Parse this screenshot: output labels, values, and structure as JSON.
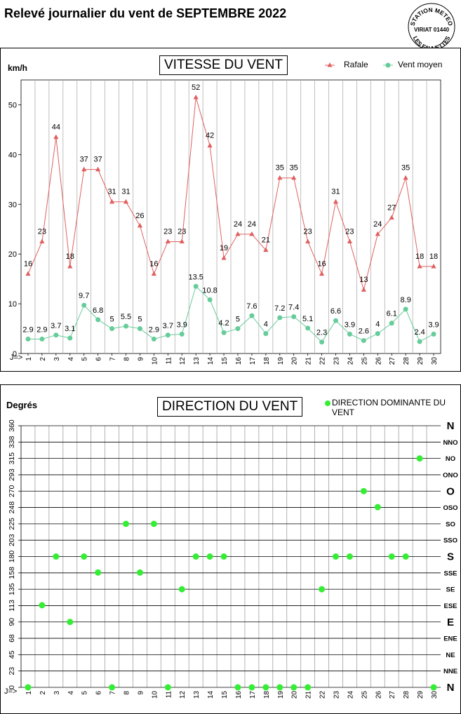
{
  "page": {
    "title": "Relevé journalier du vent de SEPTEMBRE 2022",
    "stamp": {
      "top": "STATION METEO",
      "middle": "VIRIAT 01440",
      "bottom": "LES FAUVETTES"
    }
  },
  "chart_data": [
    {
      "type": "line",
      "title": "VITESSE DU VENT",
      "ylabel": "km/h",
      "x_prefix": "J=>",
      "ylim": [
        0,
        55
      ],
      "yticks": [
        0,
        10,
        20,
        30,
        40,
        50
      ],
      "grid": "vertical",
      "legend_position": "top-right",
      "categories": [
        1,
        2,
        3,
        4,
        5,
        6,
        7,
        8,
        9,
        10,
        11,
        12,
        13,
        14,
        15,
        16,
        17,
        18,
        19,
        20,
        21,
        22,
        23,
        24,
        25,
        26,
        27,
        28,
        29,
        30
      ],
      "series": [
        {
          "name": "Rafale",
          "color": "#e06060",
          "marker": "triangle",
          "values": [
            16,
            23,
            44,
            18,
            37,
            37,
            31,
            31,
            26,
            16,
            23,
            23,
            52,
            42,
            19,
            24,
            24,
            21,
            35,
            35,
            23,
            16,
            31,
            23,
            13,
            24,
            27,
            35,
            18,
            18
          ],
          "plot_values": [
            16,
            22.5,
            43.5,
            17.5,
            37,
            37,
            30.5,
            30.5,
            25.7,
            16,
            22.5,
            22.5,
            51.5,
            41.8,
            19.2,
            24,
            24,
            20.8,
            35.3,
            35.3,
            22.5,
            16,
            30.5,
            22.5,
            12.8,
            24,
            27.3,
            35.3,
            17.5,
            17.5
          ]
        },
        {
          "name": "Vent moyen",
          "color": "#66cc99",
          "marker": "circle",
          "values": [
            2.9,
            2.9,
            3.7,
            3.1,
            9.7,
            6.8,
            5,
            5.5,
            5,
            2.9,
            3.7,
            3.9,
            13.5,
            10.8,
            4.2,
            5,
            7.6,
            4,
            7.2,
            7.4,
            5.1,
            2.3,
            6.6,
            3.9,
            2.6,
            4,
            6.1,
            8.9,
            2.4,
            3.9
          ]
        }
      ]
    },
    {
      "type": "scatter",
      "title": "DIRECTION DU VENT",
      "ylabel": "Degrés",
      "x_prefix": "J=>",
      "ylim": [
        0,
        360
      ],
      "yticks": [
        0,
        23,
        45,
        68,
        90,
        113,
        135,
        158,
        180,
        203,
        225,
        248,
        270,
        293,
        315,
        338,
        360
      ],
      "compass_labels": [
        "N",
        "NNE",
        "NE",
        "ENE",
        "E",
        "ESE",
        "SE",
        "SSE",
        "S",
        "SSO",
        "SO",
        "OSO",
        "O",
        "ONO",
        "NO",
        "NNO",
        "N"
      ],
      "compass_major": [
        "N",
        "E",
        "S",
        "O"
      ],
      "grid": "both",
      "legend_position": "top-right",
      "categories": [
        1,
        2,
        3,
        4,
        5,
        6,
        7,
        8,
        9,
        10,
        11,
        12,
        13,
        14,
        15,
        16,
        17,
        18,
        19,
        20,
        21,
        22,
        23,
        24,
        25,
        26,
        27,
        28,
        29,
        30
      ],
      "series": [
        {
          "name": "DIRECTION DOMINANTE DU VENT",
          "color": "#33ee33",
          "values": [
            0,
            113,
            180,
            90,
            180,
            158,
            0,
            225,
            158,
            225,
            0,
            135,
            180,
            180,
            180,
            0,
            0,
            0,
            0,
            0,
            0,
            135,
            180,
            180,
            270,
            248,
            180,
            180,
            315,
            0
          ]
        }
      ]
    }
  ]
}
